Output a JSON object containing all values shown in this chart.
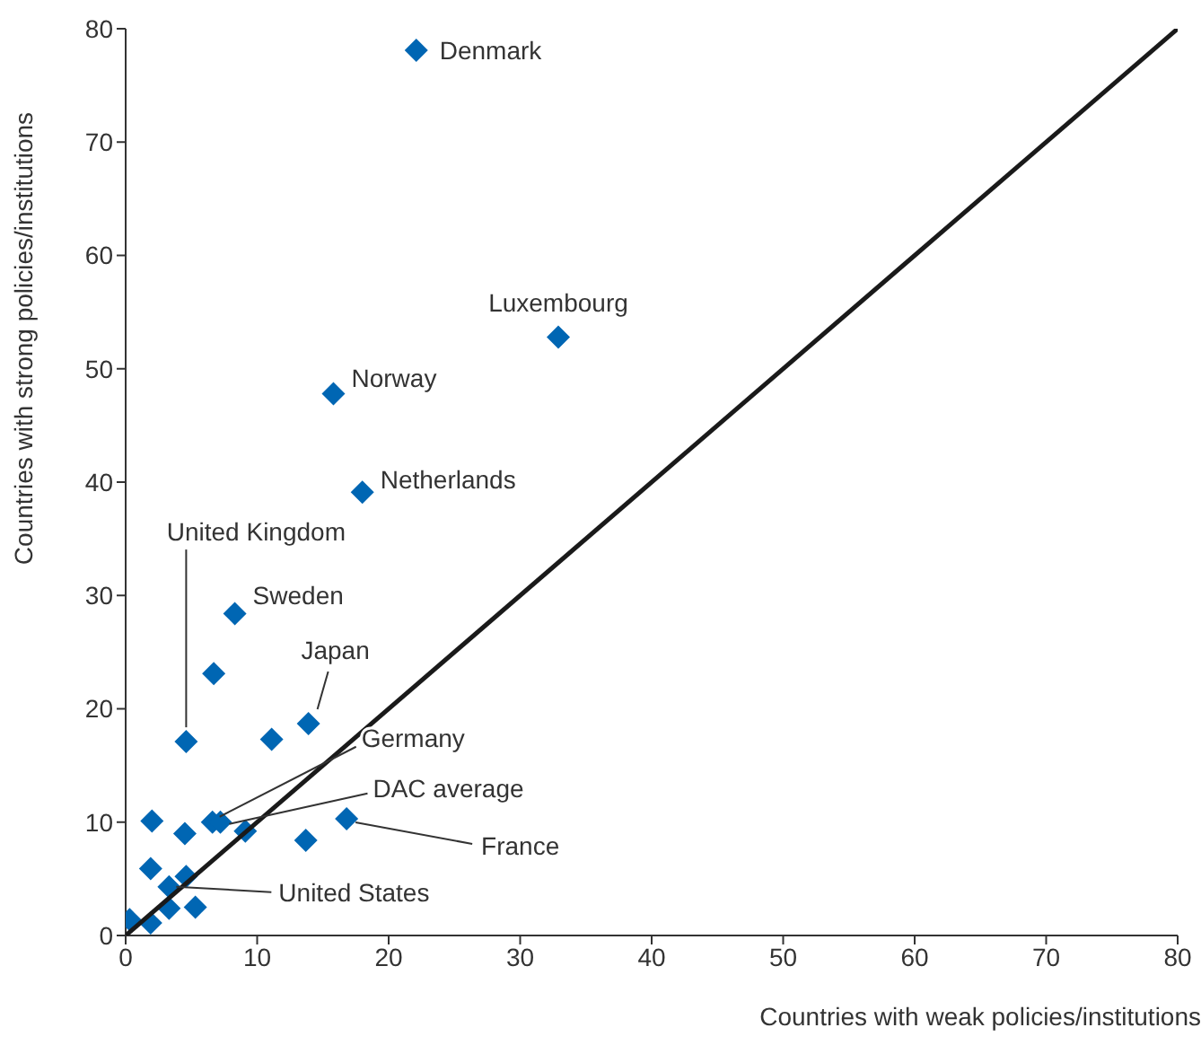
{
  "chart_data": {
    "type": "scatter",
    "xlabel": "Countries with weak policies/institutions",
    "ylabel": "Countries with strong policies/institutions",
    "xlim": [
      0,
      80
    ],
    "ylim": [
      0,
      80
    ],
    "xticks": [
      0,
      10,
      20,
      30,
      40,
      50,
      60,
      70,
      80
    ],
    "yticks": [
      0,
      10,
      20,
      30,
      40,
      50,
      60,
      70,
      80
    ],
    "grid": false,
    "legend": false,
    "marker": "diamond",
    "series": [
      {
        "color": "#0066b3",
        "x": [
          22.1,
          32.9,
          15.8,
          18.0,
          8.3,
          6.7,
          4.6,
          11.1,
          13.9,
          6.6,
          7.2,
          2.0,
          4.5,
          9.1,
          13.7,
          16.8,
          1.9,
          4.6,
          3.3,
          3.3,
          5.3,
          0.3,
          1.9
        ],
        "values": [
          78.1,
          52.8,
          47.8,
          39.1,
          28.4,
          23.1,
          17.1,
          17.3,
          18.7,
          10.0,
          10.0,
          10.1,
          9.0,
          9.2,
          8.4,
          10.3,
          5.9,
          5.2,
          4.3,
          2.4,
          2.5,
          1.4,
          1.1
        ]
      },
      {
        "type": "line",
        "marker": "none",
        "color": "#1a1a1a",
        "x": [
          0,
          80
        ],
        "values": [
          0,
          80
        ]
      }
    ],
    "annotations": [
      {
        "text": "Denmark",
        "x": 22.1,
        "y": 78.1
      },
      {
        "text": "Luxembourg",
        "x": 32.9,
        "y": 52.8
      },
      {
        "text": "Norway",
        "x": 15.8,
        "y": 47.8
      },
      {
        "text": "Netherlands",
        "x": 18.0,
        "y": 39.1
      },
      {
        "text": "Sweden",
        "x": 8.3,
        "y": 28.4
      },
      {
        "text": "United Kingdom",
        "x": 4.6,
        "y": 17.1
      },
      {
        "text": "Japan",
        "x": 13.9,
        "y": 18.7
      },
      {
        "text": "Germany",
        "x": 6.6,
        "y": 10.0
      },
      {
        "text": "DAC average",
        "x": 7.2,
        "y": 10.0
      },
      {
        "text": "France",
        "x": 16.8,
        "y": 10.3
      },
      {
        "text": "United States",
        "x": 3.3,
        "y": 4.3
      }
    ]
  }
}
